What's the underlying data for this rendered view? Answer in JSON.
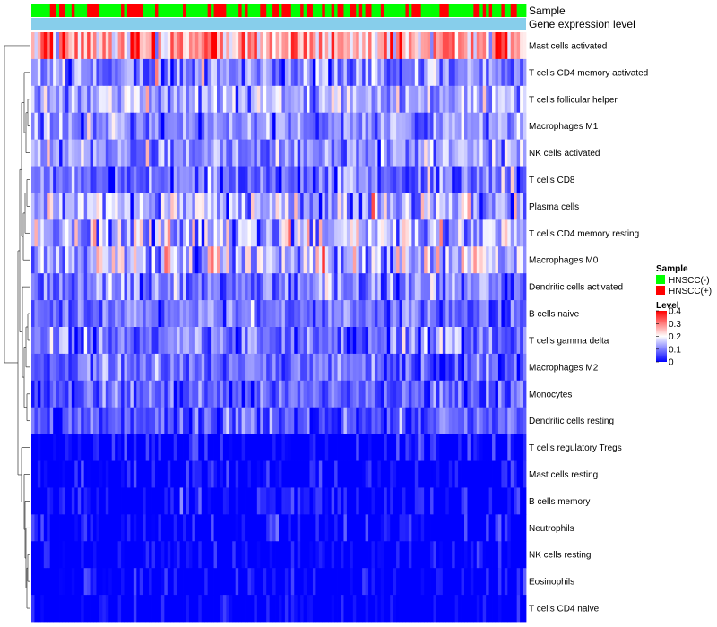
{
  "chart_data": {
    "type": "heatmap",
    "num_samples": 160,
    "tracks": [
      {
        "label": "Sample"
      },
      {
        "label": "Gene expression level"
      }
    ],
    "sample_groups": [
      "HNSCC(-)",
      "HNSCC(+)"
    ],
    "sample_legend": {
      "title": "Sample",
      "entries": [
        {
          "label": "HNSCC(-)",
          "color": "#00ff00"
        },
        {
          "label": "HNSCC(+)",
          "color": "#ff0000"
        }
      ]
    },
    "expression_track_color": "#87ceeb",
    "level_legend": {
      "title": "Level",
      "ticks": [
        0,
        0.1,
        0.2,
        0.3,
        0.4
      ],
      "range": [
        0,
        0.4
      ],
      "colors": [
        "#0000ff",
        "#ffffff",
        "#ff0000"
      ]
    },
    "rows": [
      {
        "name": "Mast cells activated",
        "mean": 0.27,
        "sd": 0.08
      },
      {
        "name": "T cells CD4 memory activated",
        "mean": 0.11,
        "sd": 0.06
      },
      {
        "name": "T cells follicular helper",
        "mean": 0.14,
        "sd": 0.05
      },
      {
        "name": "Macrophages M1",
        "mean": 0.11,
        "sd": 0.05
      },
      {
        "name": "NK cells activated",
        "mean": 0.12,
        "sd": 0.05
      },
      {
        "name": "T cells CD8",
        "mean": 0.09,
        "sd": 0.05
      },
      {
        "name": "Plasma cells",
        "mean": 0.14,
        "sd": 0.07
      },
      {
        "name": "T cells CD4 memory resting",
        "mean": 0.14,
        "sd": 0.07
      },
      {
        "name": "Macrophages M0",
        "mean": 0.16,
        "sd": 0.07
      },
      {
        "name": "Dendritic cells activated",
        "mean": 0.1,
        "sd": 0.05
      },
      {
        "name": "B cells naive",
        "mean": 0.09,
        "sd": 0.04
      },
      {
        "name": "T cells gamma delta",
        "mean": 0.08,
        "sd": 0.05
      },
      {
        "name": "Macrophages M2",
        "mean": 0.08,
        "sd": 0.04
      },
      {
        "name": "Monocytes",
        "mean": 0.07,
        "sd": 0.04
      },
      {
        "name": "Dendritic cells resting",
        "mean": 0.07,
        "sd": 0.04
      },
      {
        "name": "T cells regulatory  Tregs",
        "mean": 0.03,
        "sd": 0.03
      },
      {
        "name": "Mast cells resting",
        "mean": 0.02,
        "sd": 0.03
      },
      {
        "name": "B cells memory",
        "mean": 0.02,
        "sd": 0.03
      },
      {
        "name": "Neutrophils",
        "mean": 0.02,
        "sd": 0.03
      },
      {
        "name": "NK cells resting",
        "mean": 0.01,
        "sd": 0.025
      },
      {
        "name": "Eosinophils",
        "mean": 0.01,
        "sd": 0.025
      },
      {
        "name": "T cells CD4 naive",
        "mean": 0.01,
        "sd": 0.025
      }
    ]
  }
}
